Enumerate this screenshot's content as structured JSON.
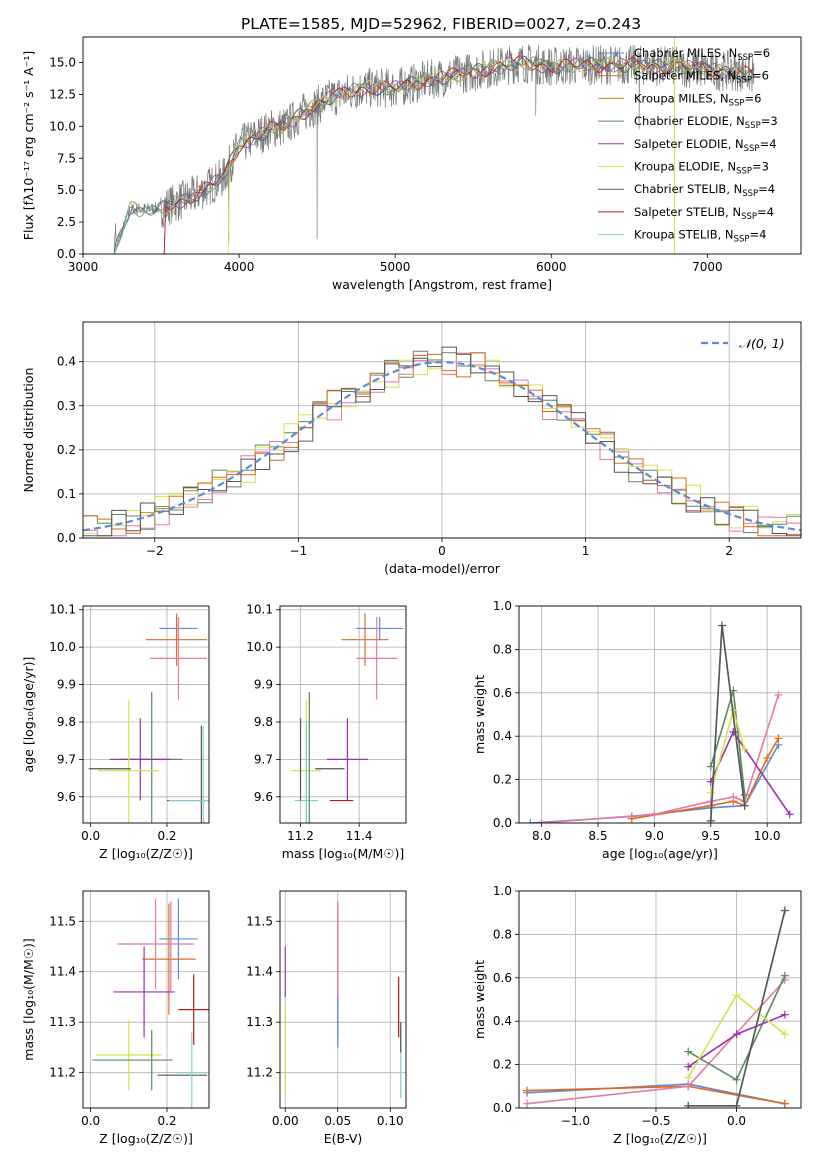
{
  "figure": {
    "title": "PLATE=1585, MJD=52962, FIBERID=0027, z=0.243"
  },
  "colors": {
    "chabrier_miles": "#5b8bd6",
    "salpeter_miles": "#e06a1e",
    "kroupa_miles": "#b8860b",
    "chabrier_elodie": "#5a8a5a",
    "salpeter_elodie": "#9b30b0",
    "kroupa_elodie": "#d4e14a",
    "chabrier_stelib": "#555555",
    "salpeter_stelib": "#b01c1c",
    "kroupa_stelib": "#7fcfd2",
    "pink": "#e27aaa"
  },
  "chart_data": [
    {
      "id": "spectrum",
      "type": "line",
      "title": "PLATE=1585, MJD=52962, FIBERID=0027, z=0.243",
      "xlabel": "wavelength [Angstrom, rest frame]",
      "ylabel": "Flux [fλ10⁻¹⁷ erg cm⁻² s⁻¹ A⁻¹]",
      "xlim": [
        3000,
        7600
      ],
      "ylim": [
        0,
        17
      ],
      "xticks": [
        3000,
        4000,
        5000,
        6000,
        7000
      ],
      "yticks": [
        0.0,
        2.5,
        5.0,
        7.5,
        10.0,
        12.5,
        15.0
      ],
      "legend_position": "right",
      "continuum": {
        "x": [
          3200,
          3300,
          3500,
          3700,
          3900,
          4000,
          4200,
          4300,
          4400,
          4600,
          4800,
          5000,
          5200,
          5500,
          5800,
          6000,
          6200,
          6500,
          6800,
          7000,
          7200,
          7300
        ],
        "y": [
          0,
          3.5,
          3.6,
          4.5,
          6.0,
          8.5,
          9.8,
          10.0,
          11.0,
          12.3,
          13.0,
          13.0,
          13.6,
          14.3,
          15.0,
          14.7,
          14.8,
          14.8,
          14.7,
          14.4,
          14.3,
          14.0
        ]
      },
      "legend": [
        {
          "label": "Chabrier MILES, N",
          "sub": "SSP",
          "suffix": "=6",
          "color": "#5b8bd6"
        },
        {
          "label": "Salpeter MILES, N",
          "sub": "SSP",
          "suffix": "=6",
          "color": "#e06a1e"
        },
        {
          "label": "Kroupa MILES, N",
          "sub": "SSP",
          "suffix": "=6",
          "color": "#b8860b"
        },
        {
          "label": "Chabrier ELODIE, N",
          "sub": "SSP",
          "suffix": "=3",
          "color": "#5a8a5a"
        },
        {
          "label": "Salpeter ELODIE, N",
          "sub": "SSP",
          "suffix": "=4",
          "color": "#9b30b0"
        },
        {
          "label": "Kroupa ELODIE, N",
          "sub": "SSP",
          "suffix": "=3",
          "color": "#d4e14a"
        },
        {
          "label": "Chabrier STELIB, N",
          "sub": "SSP",
          "suffix": "=4",
          "color": "#555555"
        },
        {
          "label": "Salpeter STELIB, N",
          "sub": "SSP",
          "suffix": "=4",
          "color": "#b01c1c"
        },
        {
          "label": "Kroupa STELIB, N",
          "sub": "SSP",
          "suffix": "=4",
          "color": "#7fcfd2"
        }
      ]
    },
    {
      "id": "residuals",
      "type": "bar",
      "xlabel": "(data-model)/error",
      "ylabel": "Normed distribution",
      "xlim": [
        -2.5,
        2.5
      ],
      "ylim": [
        0,
        0.49
      ],
      "xticks": [
        -2,
        -1,
        0,
        1,
        2
      ],
      "yticks": [
        0.0,
        0.1,
        0.2,
        0.3,
        0.4
      ],
      "grid": true,
      "legend_label": "𝒩(0, 1)",
      "legend_position": "top-right",
      "bin_width": 0.1,
      "histogram_colors": [
        "#5a8a5a",
        "#d4e14a",
        "#e27aaa",
        "#e06a1e",
        "#555555"
      ]
    },
    {
      "id": "age_vs_Z",
      "type": "scatter",
      "xlabel": "Z [log₁₀(Z/Z☉)]",
      "ylabel": "age  [log₁₀(age/yr)]",
      "xlim": [
        -0.02,
        0.31
      ],
      "ylim": [
        9.53,
        10.11
      ],
      "xticks": [
        0.0,
        0.2
      ],
      "yticks": [
        9.6,
        9.7,
        9.8,
        9.9,
        10.0,
        10.1
      ],
      "points": [
        {
          "x": 0.23,
          "y": 10.05,
          "xerr": 0.05,
          "yerr": 0.03,
          "color": "#5b8bd6"
        },
        {
          "x": 0.225,
          "y": 10.02,
          "xerr": 0.08,
          "yerr": 0.07,
          "color": "#e06a1e"
        },
        {
          "x": 0.23,
          "y": 9.97,
          "xerr": 0.075,
          "yerr": 0.11,
          "color": "#e27aaa"
        },
        {
          "x": 0.16,
          "y": 9.7,
          "xerr": 0.08,
          "yerr": 0.18,
          "color": "#5a8a5a"
        },
        {
          "x": 0.13,
          "y": 9.7,
          "xerr": 0.08,
          "yerr": 0.11,
          "color": "#9b30b0"
        },
        {
          "x": 0.1,
          "y": 9.67,
          "xerr": 0.08,
          "yerr": 0.19,
          "color": "#d4e14a"
        },
        {
          "x": 0.05,
          "y": 9.675,
          "xerr": 0.055,
          "yerr": 0.0,
          "color": "#555555"
        },
        {
          "x": 0.29,
          "y": 9.59,
          "xerr": 0.09,
          "yerr": 0.2,
          "color": "#555555"
        },
        {
          "x": 0.295,
          "y": 9.59,
          "xerr": 0.09,
          "yerr": 0.2,
          "color": "#7fcfd2"
        }
      ]
    },
    {
      "id": "age_vs_mass",
      "type": "scatter",
      "xlabel": "mass [log₁₀(M/M☉)]",
      "ylabel": "",
      "xlim": [
        11.13,
        11.56
      ],
      "ylim": [
        9.53,
        10.11
      ],
      "xticks": [
        11.2,
        11.4
      ],
      "yticks": [
        9.6,
        9.7,
        9.8,
        9.9,
        10.0,
        10.1
      ],
      "points": [
        {
          "x": 11.47,
          "y": 10.05,
          "xerr": 0.08,
          "yerr": 0.03,
          "color": "#5b8bd6"
        },
        {
          "x": 11.42,
          "y": 10.02,
          "xerr": 0.08,
          "yerr": 0.07,
          "color": "#e06a1e"
        },
        {
          "x": 11.46,
          "y": 9.97,
          "xerr": 0.07,
          "yerr": 0.11,
          "color": "#e27aaa"
        },
        {
          "x": 11.36,
          "y": 9.7,
          "xerr": 0.07,
          "yerr": 0.11,
          "color": "#9b30b0"
        },
        {
          "x": 11.22,
          "y": 9.67,
          "xerr": 0.05,
          "yerr": 0.19,
          "color": "#d4e14a"
        },
        {
          "x": 11.22,
          "y": 9.59,
          "xerr": 0.04,
          "yerr": 0.21,
          "color": "#7fcfd2"
        },
        {
          "x": 11.2,
          "y": 9.7,
          "xerr": 0.0,
          "yerr": 0.11,
          "color": "#555555"
        },
        {
          "x": 11.34,
          "y": 9.59,
          "xerr": 0.04,
          "yerr": 0.0,
          "color": "#b01c1c"
        },
        {
          "x": 11.3,
          "y": 9.675,
          "xerr": 0.05,
          "yerr": 0.0,
          "color": "#555555"
        },
        {
          "x": 11.23,
          "y": 9.7,
          "xerr": 0.0,
          "yerr": 0.18,
          "color": "#5a8a5a"
        }
      ]
    },
    {
      "id": "mass_weight_vs_age",
      "type": "line",
      "xlabel": "age  [log₁₀(age/yr)]",
      "ylabel": "mass weight",
      "xlim": [
        7.8,
        10.3
      ],
      "ylim": [
        0,
        1.0
      ],
      "xticks": [
        8.0,
        8.5,
        9.0,
        9.5,
        10.0
      ],
      "yticks": [
        0.0,
        0.2,
        0.4,
        0.6,
        0.8,
        1.0
      ],
      "grid": true,
      "series": [
        {
          "color": "#5b8bd6",
          "x": [
            7.9,
            8.8,
            9.5,
            9.8,
            10.1
          ],
          "y": [
            0.0,
            0.03,
            0.07,
            0.08,
            0.36
          ]
        },
        {
          "color": "#e06a1e",
          "x": [
            8.8,
            9.5,
            9.7,
            9.8,
            10.0,
            10.1
          ],
          "y": [
            0.02,
            0.08,
            0.1,
            0.08,
            0.3,
            0.39
          ]
        },
        {
          "color": "#e27aaa",
          "x": [
            8.0,
            9.0,
            9.5,
            9.7,
            9.8,
            10.1
          ],
          "y": [
            0.0,
            0.04,
            0.1,
            0.12,
            0.1,
            0.59
          ]
        },
        {
          "color": "#5a8a5a",
          "x": [
            9.5,
            9.7,
            9.8
          ],
          "y": [
            0.26,
            0.61,
            0.13
          ]
        },
        {
          "color": "#9b30b0",
          "x": [
            9.5,
            9.7,
            10.2
          ],
          "y": [
            0.19,
            0.42,
            0.04
          ]
        },
        {
          "color": "#d4e14a",
          "x": [
            9.5,
            9.7,
            9.8
          ],
          "y": [
            0.14,
            0.52,
            0.34
          ]
        },
        {
          "color": "#7fcfd2",
          "x": [
            9.5,
            9.6,
            9.8
          ],
          "y": [
            0.01,
            0.91,
            0.08
          ]
        },
        {
          "color": "#555555",
          "x": [
            9.5,
            9.6,
            9.8
          ],
          "y": [
            0.01,
            0.91,
            0.08
          ]
        }
      ]
    },
    {
      "id": "mass_vs_Z",
      "type": "scatter",
      "xlabel": "Z [log₁₀(Z/Z☉)]",
      "ylabel": "mass [log₁₀(M/M☉)]",
      "xlim": [
        -0.02,
        0.31
      ],
      "ylim": [
        11.13,
        11.56
      ],
      "xticks": [
        0.0,
        0.2
      ],
      "yticks": [
        11.2,
        11.3,
        11.4,
        11.5
      ],
      "points": [
        {
          "x": 0.23,
          "y": 11.465,
          "xerr": 0.05,
          "yerr": 0.08,
          "color": "#5b8bd6"
        },
        {
          "x": 0.205,
          "y": 11.425,
          "xerr": 0.07,
          "yerr": 0.11,
          "color": "#e06a1e"
        },
        {
          "x": 0.17,
          "y": 11.455,
          "xerr": 0.1,
          "yerr": 0.09,
          "color": "#e27aaa"
        },
        {
          "x": 0.14,
          "y": 11.36,
          "xerr": 0.08,
          "yerr": 0.09,
          "color": "#9b30b0"
        },
        {
          "x": 0.1,
          "y": 11.235,
          "xerr": 0.085,
          "yerr": 0.07,
          "color": "#d4e14a"
        },
        {
          "x": 0.11,
          "y": 11.225,
          "xerr": 0.105,
          "yerr": 0.0,
          "color": "#5a8a5a"
        },
        {
          "x": 0.16,
          "y": 11.225,
          "xerr": 0.0,
          "yerr": 0.06,
          "color": "#5a8a5a"
        },
        {
          "x": 0.27,
          "y": 11.325,
          "xerr": 0.04,
          "yerr": 0.07,
          "color": "#b01c1c"
        },
        {
          "x": 0.24,
          "y": 11.195,
          "xerr": 0.065,
          "yerr": 0.0,
          "color": "#555555"
        },
        {
          "x": 0.265,
          "y": 11.2,
          "xerr": 0.04,
          "yerr": 0.08,
          "color": "#7fcfd2"
        },
        {
          "x": 0.21,
          "y": 11.45,
          "xerr": 0.0,
          "yerr": 0.09,
          "color": "#e27aaa"
        }
      ]
    },
    {
      "id": "mass_vs_EBV",
      "type": "scatter",
      "xlabel": "E(B-V)",
      "ylabel": "",
      "xlim": [
        -0.005,
        0.115
      ],
      "ylim": [
        11.13,
        11.56
      ],
      "xticks": [
        0.0,
        0.05,
        0.1
      ],
      "yticks": [
        11.2,
        11.3,
        11.4,
        11.5
      ],
      "points": [
        {
          "x": 0.0,
          "y": 11.4,
          "xerr": 0.0,
          "yerr": 0.05,
          "color": "#9b30b0"
        },
        {
          "x": 0.0,
          "y": 11.25,
          "xerr": 0.0,
          "yerr": 0.09,
          "color": "#d4e14a"
        },
        {
          "x": 0.05,
          "y": 11.4,
          "xerr": 0.0,
          "yerr": 0.13,
          "color": "#e06a1e"
        },
        {
          "x": 0.05,
          "y": 11.44,
          "xerr": 0.0,
          "yerr": 0.1,
          "color": "#e27aaa"
        },
        {
          "x": 0.05,
          "y": 11.3,
          "xerr": 0.0,
          "yerr": 0.05,
          "color": "#5b8bd6"
        },
        {
          "x": 0.108,
          "y": 11.33,
          "xerr": 0.0,
          "yerr": 0.06,
          "color": "#b01c1c"
        },
        {
          "x": 0.11,
          "y": 11.22,
          "xerr": 0.0,
          "yerr": 0.07,
          "color": "#7fcfd2"
        },
        {
          "x": 0.11,
          "y": 11.27,
          "xerr": 0.0,
          "yerr": 0.03,
          "color": "#555555"
        }
      ]
    },
    {
      "id": "mass_weight_vs_Z",
      "type": "line",
      "xlabel": "Z [log₁₀(Z/Z☉)]",
      "ylabel": "mass weight",
      "xlim": [
        -1.35,
        0.4
      ],
      "ylim": [
        0,
        1.0
      ],
      "xticks": [
        -1.0,
        -0.5,
        0.0
      ],
      "yticks": [
        0.0,
        0.2,
        0.4,
        0.6,
        0.8,
        1.0
      ],
      "grid": true,
      "series": [
        {
          "color": "#5b8bd6",
          "x": [
            -1.3,
            -0.3,
            0.3
          ],
          "y": [
            0.07,
            0.11,
            0.02
          ]
        },
        {
          "color": "#e06a1e",
          "x": [
            -1.3,
            -0.3,
            0.3
          ],
          "y": [
            0.08,
            0.1,
            0.02
          ]
        },
        {
          "color": "#e27aaa",
          "x": [
            -1.3,
            -0.3,
            0.3
          ],
          "y": [
            0.02,
            0.1,
            0.59
          ]
        },
        {
          "color": "#5a8a5a",
          "x": [
            -0.3,
            0.0,
            0.3
          ],
          "y": [
            0.26,
            0.13,
            0.61
          ]
        },
        {
          "color": "#9b30b0",
          "x": [
            -0.3,
            0.0,
            0.3
          ],
          "y": [
            0.19,
            0.34,
            0.43
          ]
        },
        {
          "color": "#d4e14a",
          "x": [
            -0.3,
            0.0,
            0.3
          ],
          "y": [
            0.14,
            0.52,
            0.34
          ]
        },
        {
          "color": "#7fcfd2",
          "x": [
            -0.3,
            0.0,
            0.3
          ],
          "y": [
            0.01,
            0.01,
            0.91
          ]
        },
        {
          "color": "#555555",
          "x": [
            -0.3,
            0.0,
            0.3
          ],
          "y": [
            0.01,
            0.01,
            0.91
          ]
        }
      ]
    }
  ]
}
